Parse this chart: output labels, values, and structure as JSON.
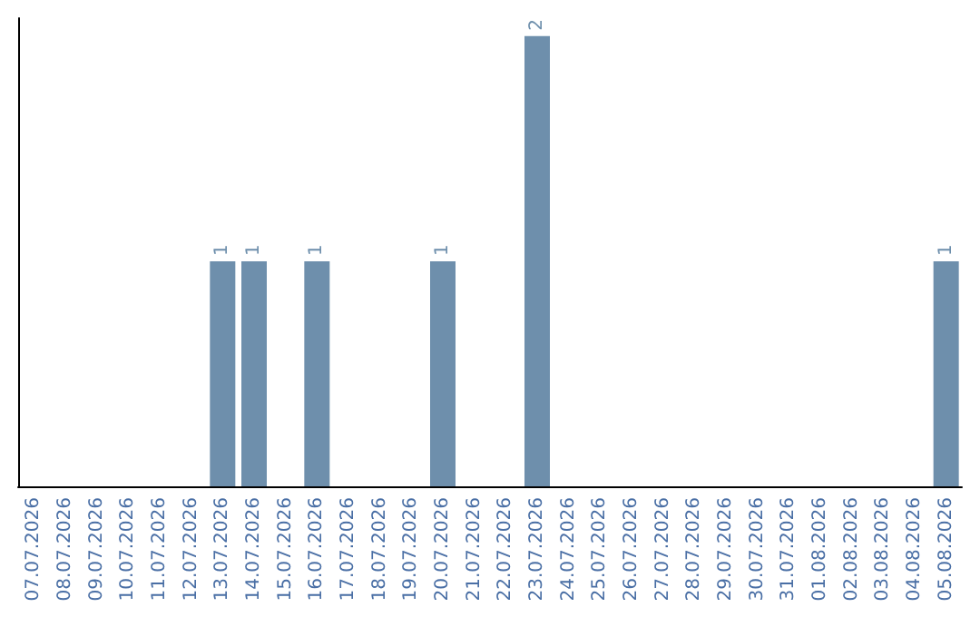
{
  "chart_data": {
    "type": "bar",
    "categories": [
      "07.07.2026",
      "08.07.2026",
      "09.07.2026",
      "10.07.2026",
      "11.07.2026",
      "12.07.2026",
      "13.07.2026",
      "14.07.2026",
      "15.07.2026",
      "16.07.2026",
      "17.07.2026",
      "18.07.2026",
      "19.07.2026",
      "20.07.2026",
      "21.07.2026",
      "22.07.2026",
      "23.07.2026",
      "24.07.2026",
      "25.07.2026",
      "26.07.2026",
      "27.07.2026",
      "28.07.2026",
      "29.07.2026",
      "30.07.2026",
      "31.07.2026",
      "01.08.2026",
      "02.08.2026",
      "03.08.2026",
      "04.08.2026",
      "05.08.2026"
    ],
    "values": [
      0,
      0,
      0,
      0,
      0,
      0,
      1,
      1,
      0,
      1,
      0,
      0,
      0,
      1,
      0,
      0,
      2,
      0,
      0,
      0,
      0,
      0,
      0,
      0,
      0,
      0,
      0,
      0,
      0,
      1
    ],
    "value_labels": [
      null,
      null,
      null,
      null,
      null,
      null,
      "1",
      "1",
      null,
      "1",
      null,
      null,
      null,
      "1",
      null,
      null,
      "2",
      null,
      null,
      null,
      null,
      null,
      null,
      null,
      null,
      null,
      null,
      null,
      null,
      "1"
    ],
    "color": "#6e8fac",
    "tick_labels": "x"
  }
}
